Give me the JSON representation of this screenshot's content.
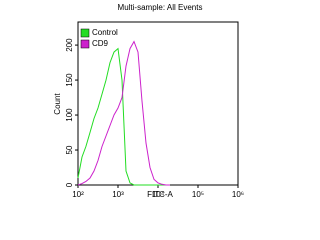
{
  "chart_data": {
    "type": "line",
    "title": "Multi-sample: All Events",
    "x_label": "FITC-A",
    "y_label": "Count",
    "xscale": "log",
    "x": [
      100,
      126,
      158,
      200,
      251,
      316,
      398,
      501,
      631,
      794,
      1000,
      1259,
      1585,
      1995,
      2512,
      3162,
      3981,
      5012,
      6310,
      7943,
      10000,
      12589,
      15849,
      19953
    ],
    "series": [
      {
        "name": "Control",
        "color": "#22dd22",
        "values": [
          10,
          40,
          55,
          75,
          95,
          110,
          130,
          150,
          175,
          190,
          195,
          150,
          20,
          3,
          0,
          0,
          0,
          0,
          0,
          0,
          0,
          0,
          0,
          0
        ]
      },
      {
        "name": "CD9",
        "color": "#cc22cc",
        "values": [
          0,
          2,
          5,
          10,
          20,
          35,
          55,
          70,
          85,
          100,
          110,
          125,
          170,
          195,
          205,
          190,
          120,
          60,
          25,
          8,
          3,
          1,
          0,
          0
        ]
      }
    ],
    "xlim": [
      100,
      1000000
    ],
    "xticks": [
      {
        "value": 100,
        "label": "10²"
      },
      {
        "value": 1000,
        "label": "10³"
      },
      {
        "value": 10000,
        "label": "10⁴"
      },
      {
        "value": 100000,
        "label": "10⁵"
      },
      {
        "value": 1000000,
        "label": "10⁶"
      }
    ],
    "ylim": [
      0,
      233
    ],
    "yticks": [
      0,
      50,
      100,
      150,
      200
    ],
    "legend": "upper left"
  }
}
